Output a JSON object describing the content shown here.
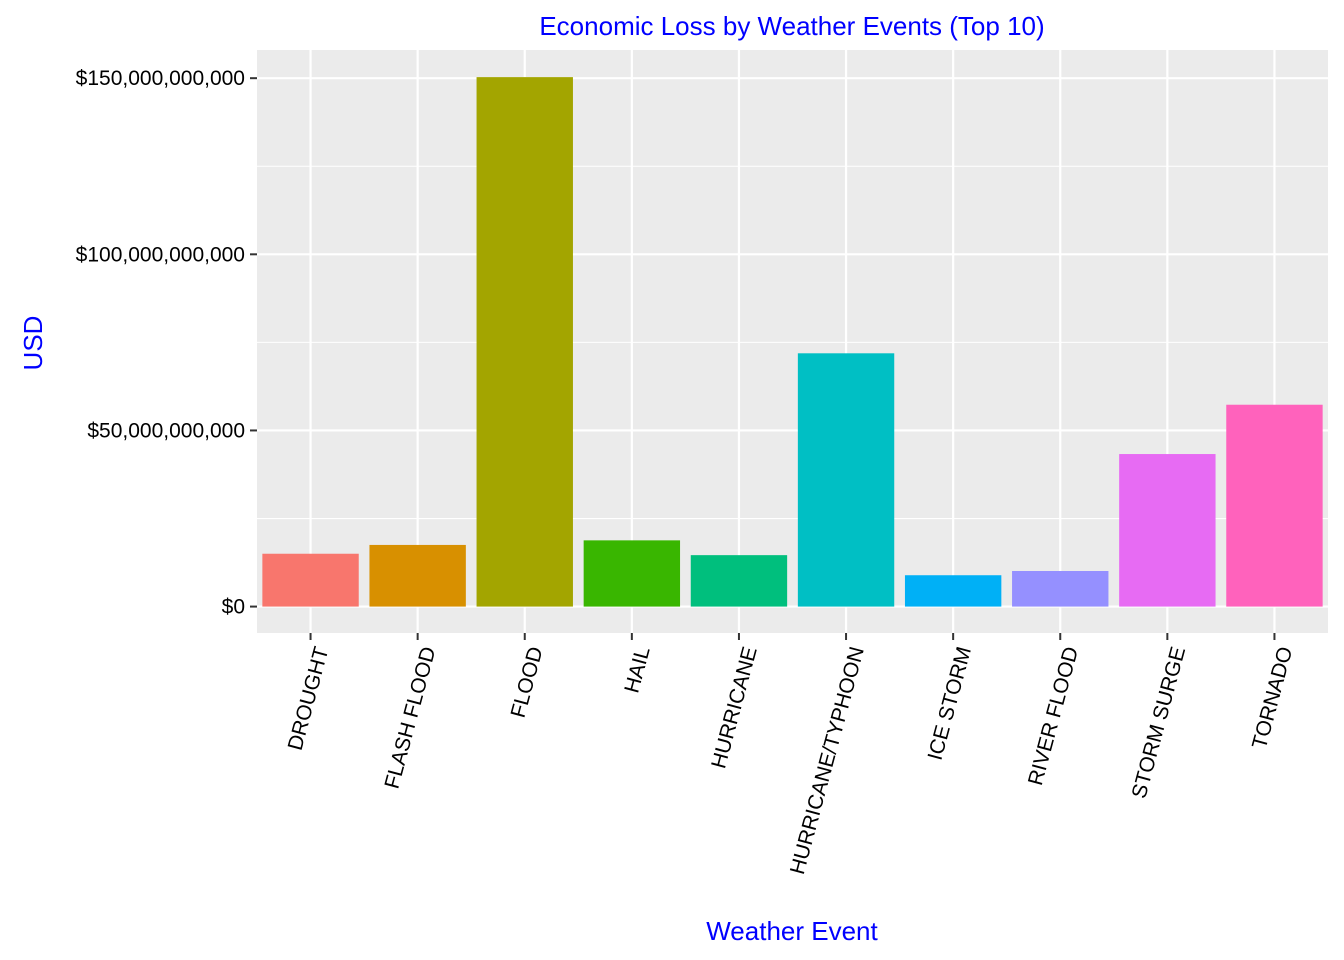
{
  "colors": {
    "panel_background": "#EBEBEB",
    "grid_major": "#FFFFFF",
    "grid_minor": "#F5F5F5",
    "title": "#0000FF",
    "axis_title": "#0000FF",
    "tick_text": "#000000",
    "tick_mark": "#333333"
  },
  "chart_data": {
    "type": "bar",
    "title": "Economic Loss by Weather Events (Top 10)",
    "xlabel": "Weather Event",
    "ylabel": "USD",
    "categories": [
      "DROUGHT",
      "FLASH FLOOD",
      "FLOOD",
      "HAIL",
      "HURRICANE",
      "HURRICANE/TYPHOON",
      "ICE STORM",
      "RIVER FLOOD",
      "STORM SURGE",
      "TORNADO"
    ],
    "values": [
      15000000000,
      17500000000,
      150300000000,
      18800000000,
      14600000000,
      71900000000,
      8900000000,
      10100000000,
      43300000000,
      57300000000
    ],
    "bar_colors": [
      "#F8766D",
      "#D89000",
      "#A3A500",
      "#39B600",
      "#00BF7D",
      "#00BFC4",
      "#00B0F6",
      "#9590FF",
      "#E76BF3",
      "#FF62BC"
    ],
    "ylim": [
      -7500000000,
      158000000000
    ],
    "y_ticks": [
      0,
      50000000000,
      100000000000,
      150000000000
    ],
    "y_tick_labels": [
      "$0",
      "$50,000,000,000",
      "$100,000,000,000",
      "$150,000,000,000"
    ],
    "grid": true,
    "legend": "none",
    "x_tick_label_rotation_deg": -75
  }
}
